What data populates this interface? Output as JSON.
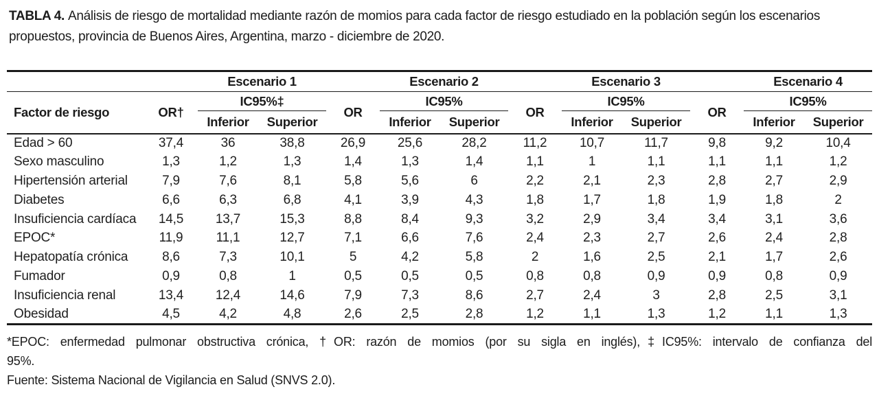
{
  "title": {
    "label": "TABLA 4.",
    "text": "Análisis de riesgo de mortalidad mediante razón de momios para cada factor de riesgo estudiado en la población según los escenarios propuestos, provincia de Buenos Aires, Argentina, marzo - diciembre de 2020."
  },
  "table": {
    "factor_header": "Factor de riesgo",
    "or_header_first": "OR†",
    "or_header": "OR",
    "ci_sub_headers": {
      "lower": "Inferior",
      "upper": "Superior"
    },
    "scenarios": [
      {
        "label": "Escenario 1",
        "ic_label": "IC95%‡"
      },
      {
        "label": "Escenario 2",
        "ic_label": "IC95%"
      },
      {
        "label": "Escenario 3",
        "ic_label": "IC95%"
      },
      {
        "label": "Escenario 4",
        "ic_label": "IC95%"
      }
    ],
    "rows": [
      {
        "factor": "Edad > 60",
        "values": [
          "37,4",
          "36",
          "38,8",
          "26,9",
          "25,6",
          "28,2",
          "11,2",
          "10,7",
          "11,7",
          "9,8",
          "9,2",
          "10,4"
        ]
      },
      {
        "factor": "Sexo masculino",
        "values": [
          "1,3",
          "1,2",
          "1,3",
          "1,4",
          "1,3",
          "1,4",
          "1,1",
          "1",
          "1,1",
          "1,1",
          "1,1",
          "1,2"
        ]
      },
      {
        "factor": "Hipertensión arterial",
        "values": [
          "7,9",
          "7,6",
          "8,1",
          "5,8",
          "5,6",
          "6",
          "2,2",
          "2,1",
          "2,3",
          "2,8",
          "2,7",
          "2,9"
        ]
      },
      {
        "factor": "Diabetes",
        "values": [
          "6,6",
          "6,3",
          "6,8",
          "4,1",
          "3,9",
          "4,3",
          "1,8",
          "1,7",
          "1,8",
          "1,9",
          "1,8",
          "2"
        ]
      },
      {
        "factor": "Insuficiencia cardíaca",
        "values": [
          "14,5",
          "13,7",
          "15,3",
          "8,8",
          "8,4",
          "9,3",
          "3,2",
          "2,9",
          "3,4",
          "3,4",
          "3,1",
          "3,6"
        ]
      },
      {
        "factor": "EPOC*",
        "values": [
          "11,9",
          "11,1",
          "12,7",
          "7,1",
          "6,6",
          "7,6",
          "2,4",
          "2,3",
          "2,7",
          "2,6",
          "2,4",
          "2,8"
        ]
      },
      {
        "factor": "Hepatopatía crónica",
        "values": [
          "8,6",
          "7,3",
          "10,1",
          "5",
          "4,2",
          "5,8",
          "2",
          "1,6",
          "2,5",
          "2,1",
          "1,7",
          "2,6"
        ]
      },
      {
        "factor": "Fumador",
        "values": [
          "0,9",
          "0,8",
          "1",
          "0,5",
          "0,5",
          "0,5",
          "0,8",
          "0,8",
          "0,9",
          "0,9",
          "0,8",
          "0,9"
        ]
      },
      {
        "factor": "Insuficiencia renal",
        "values": [
          "13,4",
          "12,4",
          "14,6",
          "7,9",
          "7,3",
          "8,6",
          "2,7",
          "2,4",
          "3",
          "2,8",
          "2,5",
          "3,1"
        ]
      },
      {
        "factor": "Obesidad",
        "values": [
          "4,5",
          "4,2",
          "4,8",
          "2,6",
          "2,5",
          "2,8",
          "1,2",
          "1,1",
          "1,3",
          "1,2",
          "1,1",
          "1,3"
        ]
      }
    ]
  },
  "footnotes": {
    "definitions_lines": [
      "*EPOC: enfermedad pulmonar obstructiva crónica, †OR: razón de momios (por su sigla en inglés),‡IC95%: intervalo de confianza del",
      "95%."
    ],
    "source": "Fuente: Sistema Nacional de Vigilancia en Salud (SNVS 2.0)."
  }
}
